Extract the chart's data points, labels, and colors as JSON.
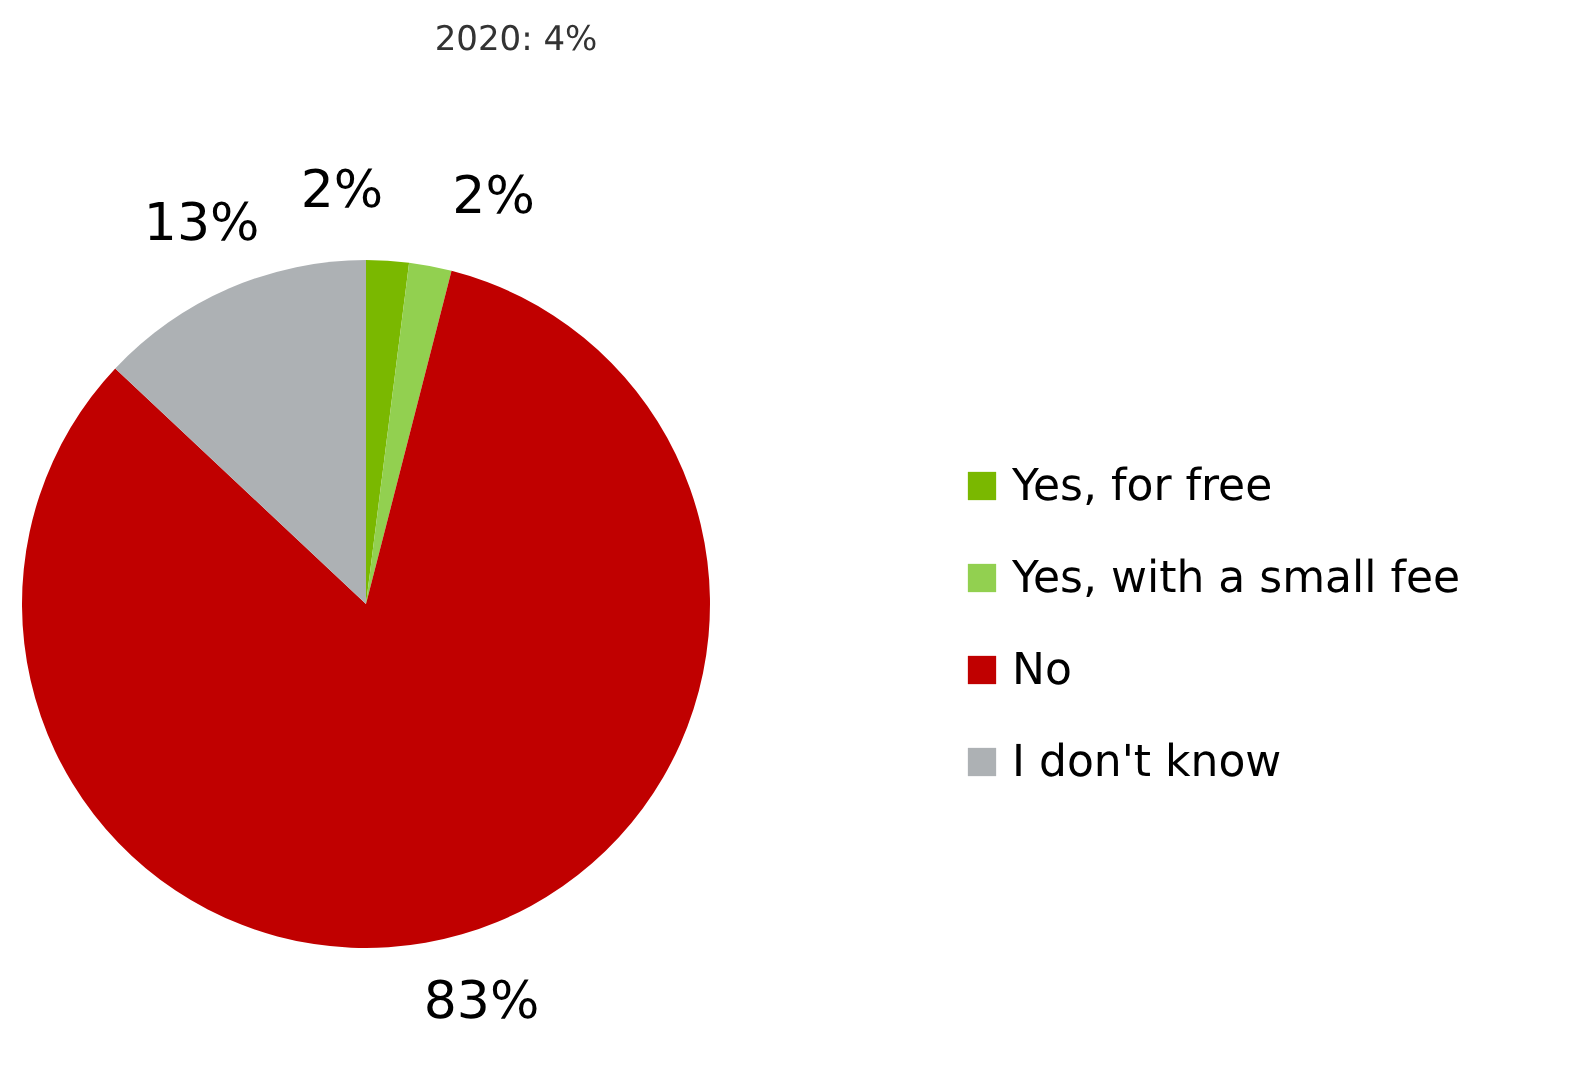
{
  "chart_data": {
    "type": "pie",
    "categories": [
      "Yes, for free",
      "Yes, with a small fee",
      "No",
      "I don't know"
    ],
    "values": [
      2,
      2,
      83,
      13
    ],
    "value_labels": [
      "2%",
      "2%",
      "83%",
      "13%"
    ],
    "colors": [
      "#7ab800",
      "#92d050",
      "#c00000",
      "#adb1b4"
    ],
    "annotations": [
      "2020: 4%"
    ],
    "legend": "right"
  }
}
